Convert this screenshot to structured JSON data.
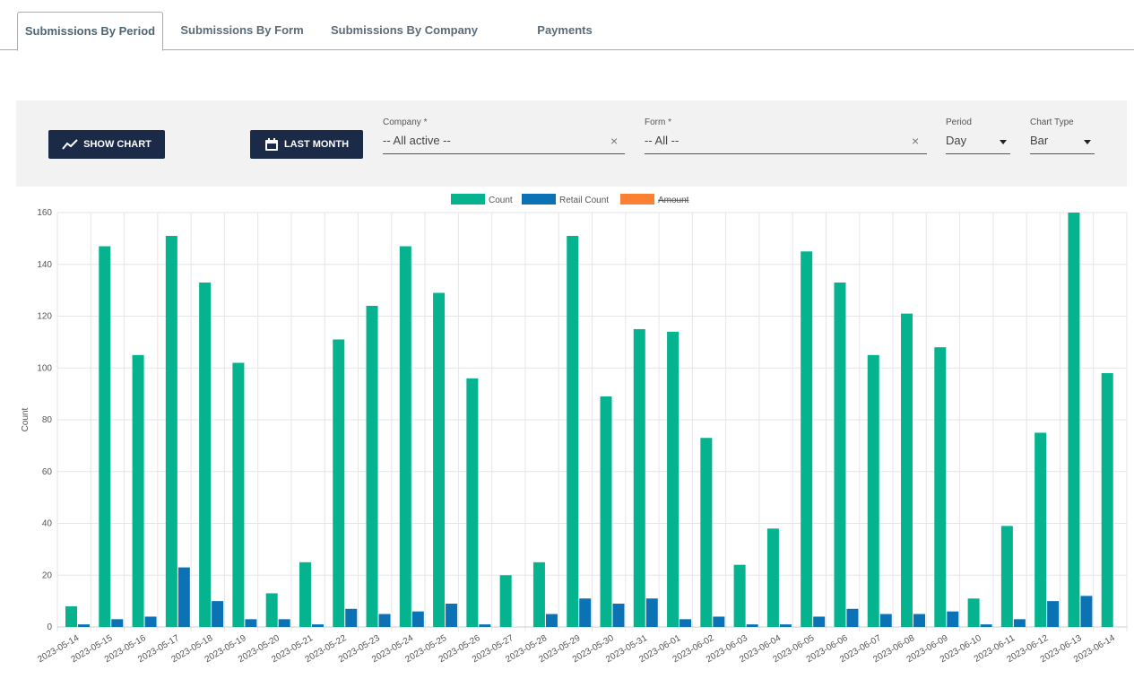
{
  "tabs": [
    "Submissions By Period",
    "Submissions By Form",
    "Submissions By Company",
    "Payments"
  ],
  "toolbar": {
    "show_chart": "SHOW CHART",
    "last_month": "LAST MONTH",
    "company": {
      "label": "Company *",
      "value": "-- All active --"
    },
    "form": {
      "label": "Form *",
      "value": "-- All --"
    },
    "period": {
      "label": "Period",
      "value": "Day"
    },
    "chart_type": {
      "label": "Chart Type",
      "value": "Bar"
    }
  },
  "chart_data": {
    "type": "bar",
    "ylabel": "Count",
    "categories": [
      "2023-05-14",
      "2023-05-15",
      "2023-05-16",
      "2023-05-17",
      "2023-05-18",
      "2023-05-19",
      "2023-05-20",
      "2023-05-21",
      "2023-05-22",
      "2023-05-23",
      "2023-05-24",
      "2023-05-25",
      "2023-05-26",
      "2023-05-27",
      "2023-05-28",
      "2023-05-29",
      "2023-05-30",
      "2023-05-31",
      "2023-06-01",
      "2023-06-02",
      "2023-06-03",
      "2023-06-04",
      "2023-06-05",
      "2023-06-06",
      "2023-06-07",
      "2023-06-08",
      "2023-06-09",
      "2023-06-10",
      "2023-06-11",
      "2023-06-12",
      "2023-06-13",
      "2023-06-14"
    ],
    "series": [
      {
        "name": "Count",
        "color": "#05b48e",
        "values": [
          8,
          147,
          105,
          151,
          133,
          102,
          13,
          25,
          111,
          124,
          147,
          129,
          96,
          20,
          25,
          151,
          89,
          115,
          114,
          73,
          24,
          38,
          145,
          133,
          105,
          121,
          108,
          11,
          39,
          75,
          160,
          98
        ]
      },
      {
        "name": "Retail Count",
        "color": "#0b72b5",
        "values": [
          1,
          3,
          4,
          23,
          10,
          3,
          3,
          1,
          7,
          5,
          6,
          9,
          1,
          0,
          5,
          11,
          9,
          11,
          3,
          4,
          1,
          1,
          4,
          7,
          5,
          5,
          6,
          1,
          3,
          10,
          12,
          0
        ]
      },
      {
        "name": "Amount",
        "color": "#fb8033",
        "hidden": true
      }
    ],
    "ylim": [
      0,
      160
    ],
    "yticks": [
      0,
      20,
      40,
      60,
      80,
      100,
      120,
      140,
      160
    ],
    "grid": true,
    "legend": "top"
  }
}
